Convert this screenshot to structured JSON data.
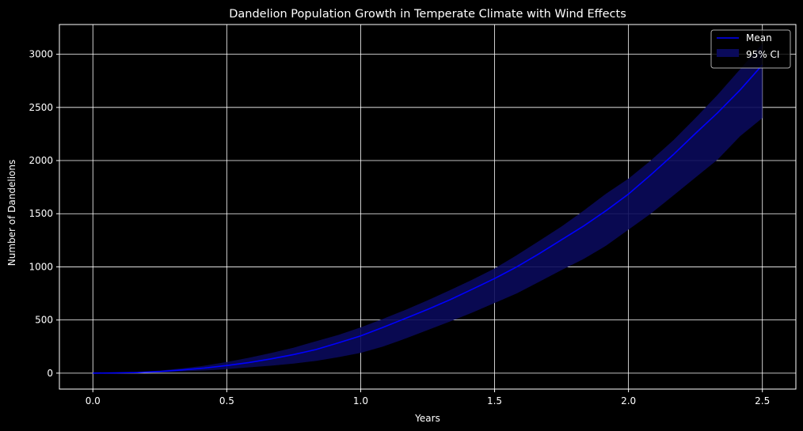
{
  "chart_data": {
    "type": "line",
    "title": "Dandelion Population Growth in Temperate Climate with Wind Effects",
    "xlabel": "Years",
    "ylabel": "Number of Dandelions",
    "xlim": [
      -0.125,
      2.625
    ],
    "ylim": [
      -150,
      3280
    ],
    "grid": true,
    "legend_position": "top-right",
    "x_ticks": [
      0.0,
      0.5,
      1.0,
      1.5,
      2.0,
      2.5
    ],
    "x_tick_labels": [
      "0.0",
      "0.5",
      "1.0",
      "1.5",
      "2.0",
      "2.5"
    ],
    "y_ticks": [
      0,
      500,
      1000,
      1500,
      2000,
      2500,
      3000
    ],
    "y_tick_labels": [
      "0",
      "500",
      "1000",
      "1500",
      "2000",
      "2500",
      "3000"
    ],
    "x": [
      0.0,
      0.083,
      0.167,
      0.25,
      0.333,
      0.417,
      0.5,
      0.583,
      0.667,
      0.75,
      0.833,
      0.917,
      1.0,
      1.083,
      1.167,
      1.25,
      1.333,
      1.417,
      1.5,
      1.583,
      1.667,
      1.75,
      1.833,
      1.917,
      2.0,
      2.083,
      2.167,
      2.25,
      2.333,
      2.417,
      2.5
    ],
    "series": [
      {
        "name": "Mean",
        "type": "line",
        "color": "#0000ff",
        "values": [
          0,
          2,
          6,
          15,
          30,
          48,
          72,
          100,
          135,
          175,
          222,
          285,
          350,
          430,
          515,
          600,
          690,
          790,
          890,
          1000,
          1125,
          1255,
          1385,
          1530,
          1685,
          1865,
          2055,
          2255,
          2450,
          2665,
          2900
        ]
      },
      {
        "name": "95% CI",
        "type": "band",
        "color": "#0a0a5a",
        "lower": [
          0,
          0,
          2,
          8,
          16,
          25,
          38,
          55,
          70,
          90,
          115,
          150,
          190,
          250,
          325,
          405,
          485,
          570,
          660,
          750,
          860,
          970,
          1075,
          1200,
          1350,
          1500,
          1670,
          1840,
          2010,
          2230,
          2400
        ],
        "upper": [
          0,
          4,
          12,
          24,
          45,
          70,
          105,
          145,
          190,
          240,
          300,
          360,
          430,
          510,
          595,
          685,
          780,
          880,
          985,
          1110,
          1245,
          1380,
          1530,
          1690,
          1830,
          2000,
          2190,
          2400,
          2620,
          2860,
          3100
        ]
      }
    ]
  }
}
